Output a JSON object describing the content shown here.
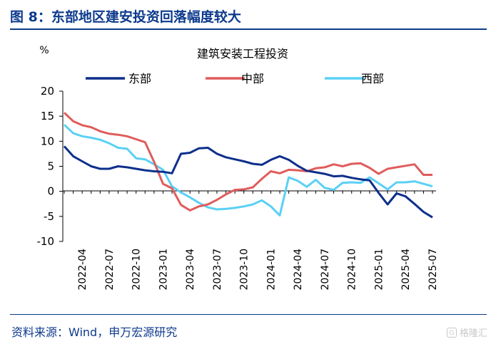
{
  "figure_title": "图 8：东部地区建安投资回落幅度较大",
  "source_text": "资料来源：Wind，申万宏源研究",
  "watermark_text": "格隆汇",
  "watermark_icon": "G-logo",
  "colors": {
    "title": "#0d3a8c",
    "east": "#0d2f8a",
    "central": "#e05c5c",
    "west": "#5bd0f5"
  },
  "chart_data": {
    "type": "line",
    "title": "建筑安装工程投资",
    "ylabel": "%",
    "ylim": [
      -10,
      20
    ],
    "yticks": [
      20,
      15,
      10,
      5,
      0,
      -5,
      -10
    ],
    "grid": false,
    "legend_position": "top",
    "x": [
      "2022-02",
      "2022-03",
      "2022-04",
      "2022-05",
      "2022-06",
      "2022-07",
      "2022-08",
      "2022-09",
      "2022-10",
      "2022-11",
      "2022-12",
      "2023-01",
      "2023-02",
      "2023-03",
      "2023-04",
      "2023-05",
      "2023-06",
      "2023-07",
      "2023-08",
      "2023-09",
      "2023-10",
      "2023-11",
      "2023-12",
      "2024-01",
      "2024-02",
      "2024-03",
      "2024-04",
      "2024-05",
      "2024-06",
      "2024-07",
      "2024-08",
      "2024-09",
      "2024-10",
      "2024-11",
      "2024-12",
      "2025-01",
      "2025-02",
      "2025-03",
      "2025-04",
      "2025-05",
      "2025-06",
      "2025-07"
    ],
    "xticks": [
      "2022-04",
      "2022-07",
      "2022-10",
      "2023-01",
      "2023-04",
      "2023-07",
      "2023-10",
      "2024-01",
      "2024-04",
      "2024-07",
      "2024-10",
      "2025-01",
      "2025-04",
      "2025-07"
    ],
    "series": [
      {
        "name": "东部",
        "color": "#0d2f8a",
        "values": [
          9.0,
          7.0,
          6.0,
          5.0,
          4.5,
          4.5,
          5.0,
          4.8,
          4.5,
          4.2,
          4.0,
          3.9,
          3.6,
          7.5,
          7.7,
          8.6,
          8.7,
          7.5,
          6.8,
          6.4,
          6.0,
          5.5,
          5.3,
          6.3,
          7.0,
          6.3,
          5.1,
          4.1,
          3.8,
          3.5,
          3.0,
          3.1,
          2.7,
          2.4,
          2.2,
          -0.3,
          -2.6,
          -0.4,
          -1.0,
          -2.5,
          -4.1,
          -5.2
        ]
      },
      {
        "name": "中部",
        "color": "#e05c5c",
        "values": [
          15.7,
          14.0,
          13.2,
          12.8,
          12.0,
          11.5,
          11.3,
          11.0,
          10.4,
          9.8,
          5.9,
          1.5,
          0.6,
          -2.7,
          -3.8,
          -3.0,
          -2.6,
          -1.7,
          -0.6,
          0.3,
          0.4,
          0.8,
          2.5,
          4.0,
          3.6,
          4.3,
          4.2,
          4.0,
          4.6,
          4.8,
          5.4,
          5.0,
          5.5,
          5.6,
          4.7,
          3.5,
          4.5,
          4.8,
          5.1,
          5.4,
          3.3,
          3.3
        ]
      },
      {
        "name": "西部",
        "color": "#5bd0f5",
        "values": [
          13.3,
          11.6,
          11.0,
          10.7,
          10.3,
          9.6,
          8.7,
          8.5,
          6.6,
          6.4,
          5.4,
          4.3,
          1.0,
          -0.2,
          -1.2,
          -2.3,
          -3.2,
          -3.6,
          -3.5,
          -3.3,
          -3.0,
          -2.6,
          -1.8,
          -3.0,
          -4.8,
          2.8,
          2.1,
          0.9,
          2.3,
          0.7,
          0.3,
          1.7,
          1.8,
          1.7,
          2.8,
          1.6,
          0.4,
          1.8,
          1.8,
          2.0,
          1.5,
          1.0
        ]
      }
    ]
  }
}
